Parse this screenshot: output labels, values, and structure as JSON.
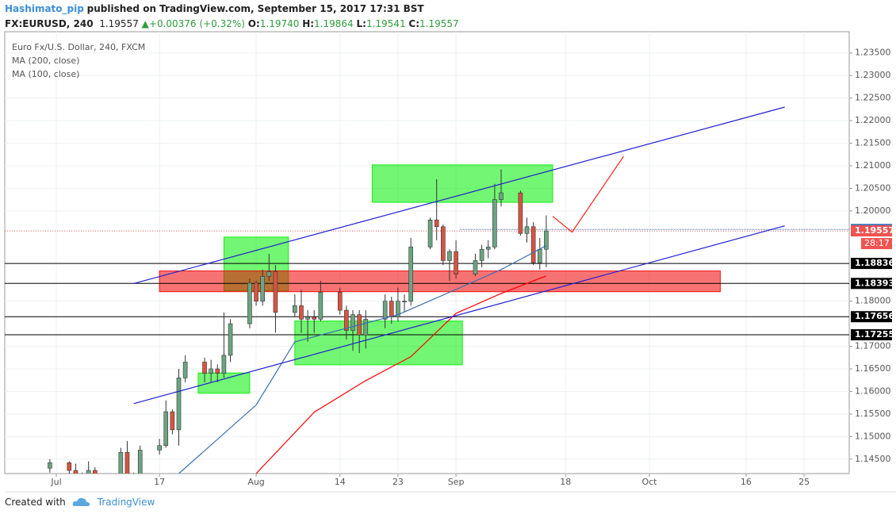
{
  "header": {
    "author": "Hashimato_pip",
    "published": "published on TradingView.com, September 15, 2017 17:31 BST",
    "symbol": "FX:EURUSD, 240",
    "price": "1.19557",
    "change": "▲+0.00376 (+0.32%)",
    "ohlc": [
      {
        "label": "O:",
        "value": "1.19740"
      },
      {
        "label": "H:",
        "value": "1.19864"
      },
      {
        "label": "L:",
        "value": "1.19541"
      },
      {
        "label": "C:",
        "value": "1.19557"
      }
    ]
  },
  "chart_data": {
    "type": "candlestick",
    "title": "Euro Fx/U.S. Dollar, 240, FXCM",
    "up_color": "#6ba583",
    "down_color": "#d75442",
    "grid": true,
    "x": [
      "06-30",
      "07-03",
      "07-04",
      "07-05",
      "07-06",
      "07-07",
      "07-10",
      "07-11",
      "07-12",
      "07-13",
      "07-14",
      "07-17",
      "07-18",
      "07-19",
      "07-20",
      "07-21",
      "07-24",
      "07-25",
      "07-26",
      "07-27",
      "07-28",
      "07-31",
      "08-01",
      "08-02",
      "08-03",
      "08-04",
      "08-07",
      "08-08",
      "08-09",
      "08-10",
      "08-11",
      "08-14",
      "08-15",
      "08-16",
      "08-17",
      "08-18",
      "08-21",
      "08-22",
      "08-23",
      "08-24",
      "08-25",
      "08-28",
      "08-29",
      "08-30",
      "08-31",
      "09-01",
      "09-04",
      "09-05",
      "09-06",
      "09-07",
      "09-08",
      "09-11",
      "09-12",
      "09-13",
      "09-14",
      "09-15"
    ],
    "open": [
      1.143,
      1.1442,
      1.1425,
      1.1405,
      1.1395,
      1.1425,
      1.14,
      1.1395,
      1.1465,
      1.1415,
      1.14,
      1.147,
      1.148,
      1.1555,
      1.1515,
      1.163,
      1.1665,
      1.164,
      1.165,
      1.164,
      1.168,
      1.175,
      1.184,
      1.18,
      1.1855,
      1.1865,
      1.1775,
      1.179,
      1.176,
      1.1765,
      1.176,
      1.182,
      1.178,
      1.1735,
      1.177,
      1.1725,
      1.176,
      1.18,
      1.1765,
      1.18,
      1.18,
      1.192,
      1.198,
      1.1965,
      1.189,
      1.191,
      1.186,
      1.189,
      1.1915,
      1.192,
      1.2025,
      1.204,
      1.195,
      1.1965,
      1.1885,
      1.1915
    ],
    "high": [
      1.145,
      1.1445,
      1.144,
      1.142,
      1.1445,
      1.1432,
      1.141,
      1.1475,
      1.149,
      1.142,
      1.148,
      1.1495,
      1.158,
      1.156,
      1.165,
      1.168,
      1.1675,
      1.167,
      1.166,
      1.1775,
      1.176,
      1.185,
      1.1845,
      1.187,
      1.1905,
      1.188,
      1.1815,
      1.1825,
      1.178,
      1.178,
      1.1845,
      1.183,
      1.179,
      1.178,
      1.178,
      1.178,
      1.1815,
      1.181,
      1.183,
      1.1815,
      1.194,
      1.1985,
      1.207,
      1.197,
      1.1915,
      1.1935,
      1.1905,
      1.1925,
      1.1935,
      1.206,
      1.2092,
      1.2045,
      1.1985,
      1.1975,
      1.194,
      1.199
    ],
    "low": [
      1.142,
      1.1405,
      1.1395,
      1.1385,
      1.139,
      1.1395,
      1.1385,
      1.139,
      1.141,
      1.1395,
      1.1395,
      1.146,
      1.1475,
      1.1505,
      1.148,
      1.162,
      1.162,
      1.162,
      1.162,
      1.163,
      1.1665,
      1.174,
      1.179,
      1.179,
      1.1845,
      1.173,
      1.1765,
      1.173,
      1.171,
      1.173,
      1.1755,
      1.177,
      1.1715,
      1.169,
      1.1685,
      1.1695,
      1.174,
      1.175,
      1.1755,
      1.1775,
      1.179,
      1.1915,
      1.1935,
      1.188,
      1.1845,
      1.185,
      1.1855,
      1.1875,
      1.1895,
      1.1915,
      1.201,
      1.1945,
      1.193,
      1.188,
      1.187,
      1.1875
    ],
    "close": [
      1.1442,
      1.1425,
      1.1405,
      1.1395,
      1.1425,
      1.14,
      1.1395,
      1.1465,
      1.1415,
      1.14,
      1.147,
      1.148,
      1.1555,
      1.1515,
      1.163,
      1.1665,
      1.164,
      1.165,
      1.164,
      1.168,
      1.175,
      1.184,
      1.18,
      1.1855,
      1.1865,
      1.1775,
      1.179,
      1.176,
      1.1765,
      1.176,
      1.182,
      1.178,
      1.1735,
      1.177,
      1.1725,
      1.176,
      1.18,
      1.1765,
      1.18,
      1.18,
      1.192,
      1.198,
      1.1965,
      1.189,
      1.191,
      1.186,
      1.189,
      1.1915,
      1.192,
      1.2025,
      1.204,
      1.195,
      1.1965,
      1.1885,
      1.1915,
      1.19557
    ],
    "series": [
      {
        "name": "MA (200, close)",
        "color": "#ff0000",
        "x": [
          "08-01",
          "08-10",
          "08-18",
          "08-25",
          "09-01",
          "09-08",
          "09-15"
        ],
        "values": [
          1.1418,
          1.1554,
          1.1624,
          1.1677,
          1.1773,
          1.1817,
          1.1856
        ]
      },
      {
        "name": "MA (100, close)",
        "color": "#3a6db0",
        "x": [
          "07-20",
          "08-01",
          "08-07",
          "08-23",
          "09-01",
          "09-08",
          "09-15"
        ],
        "values": [
          1.1418,
          1.157,
          1.171,
          1.177,
          1.1826,
          1.187,
          1.1923
        ]
      }
    ],
    "zones": [
      {
        "x": [
          "07-27",
          "08-06"
        ],
        "y": [
          1.1823,
          1.1942
        ],
        "color": "#00ee00"
      },
      {
        "x": [
          "08-19",
          "09-16"
        ],
        "y": [
          1.2019,
          1.2102
        ],
        "color": "#00ee00"
      },
      {
        "x": [
          "08-07",
          "09-02"
        ],
        "y": [
          1.1659,
          1.1756
        ],
        "color": "#00ee00"
      },
      {
        "x": [
          "07-23",
          "07-31"
        ],
        "y": [
          1.1596,
          1.1641
        ],
        "color": "#00ee00"
      },
      {
        "x": [
          "07-17",
          "10-12"
        ],
        "y": [
          1.1821,
          1.1867
        ],
        "color": "#f00000"
      }
    ],
    "lines": [
      {
        "x": [
          "07-13",
          "10-22"
        ],
        "values": [
          1.1839,
          1.223
        ],
        "color": "#2020d0"
      },
      {
        "x": [
          "07-13",
          "10-22"
        ],
        "values": [
          1.1573,
          1.1967
        ],
        "color": "#2020d0"
      },
      {
        "x": [
          "09-16",
          "09-19",
          "09-27"
        ],
        "values": [
          1.1988,
          1.1953,
          1.2121
        ],
        "color": "#ff2020"
      }
    ],
    "levels": [
      1.18836,
      1.18393,
      1.17656,
      1.17255
    ],
    "marked_level": 1.19589,
    "marked_color": "#3d6fb6",
    "last_price": 1.19557,
    "last_color": "#f05350",
    "countdown": "28:17",
    "xlim": [
      "06-23",
      "11-01"
    ],
    "ylim": [
      1.1418,
      1.2397
    ],
    "xticks": [
      {
        "value": "07-01",
        "label": "Jul"
      },
      {
        "value": "07-17",
        "label": "17"
      },
      {
        "value": "08-01",
        "label": "Aug"
      },
      {
        "value": "08-14",
        "label": "14"
      },
      {
        "value": "08-23",
        "label": "23"
      },
      {
        "value": "09-01",
        "label": "Sep"
      },
      {
        "value": "09-18",
        "label": "18"
      },
      {
        "value": "10-01",
        "label": "Oct"
      },
      {
        "value": "10-16",
        "label": "16"
      },
      {
        "value": "10-25",
        "label": "25"
      }
    ],
    "yticks": [
      {
        "value": 1.145,
        "label": "1.14500"
      },
      {
        "value": 1.15,
        "label": "1.15000"
      },
      {
        "value": 1.155,
        "label": "1.15500"
      },
      {
        "value": 1.16,
        "label": "1.16000"
      },
      {
        "value": 1.165,
        "label": "1.16500"
      },
      {
        "value": 1.17,
        "label": "1.17000"
      },
      {
        "value": 1.18,
        "label": "1.18000"
      },
      {
        "value": 1.2,
        "label": "1.20000"
      },
      {
        "value": 1.205,
        "label": "1.20500"
      },
      {
        "value": 1.21,
        "label": "1.21000"
      },
      {
        "value": 1.215,
        "label": "1.21500"
      },
      {
        "value": 1.22,
        "label": "1.22000"
      },
      {
        "value": 1.225,
        "label": "1.22500"
      },
      {
        "value": 1.23,
        "label": "1.23000"
      },
      {
        "value": 1.235,
        "label": "1.23500"
      }
    ]
  },
  "footer": {
    "created": "Created with",
    "brand": "TradingView"
  }
}
